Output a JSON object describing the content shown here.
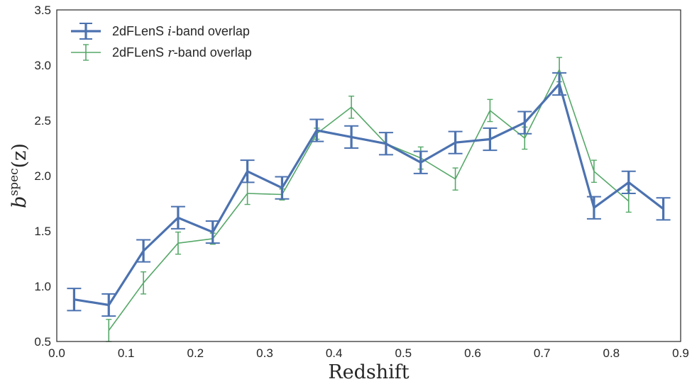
{
  "chart_data": {
    "type": "line",
    "xlabel": "Redshift",
    "ylabel": "b^spec(z)",
    "xlim": [
      0.0,
      0.9
    ],
    "ylim": [
      0.5,
      3.5
    ],
    "x_ticks": [
      "0.0",
      "0.1",
      "0.2",
      "0.3",
      "0.4",
      "0.5",
      "0.6",
      "0.7",
      "0.8",
      "0.9"
    ],
    "y_ticks": [
      "0.5",
      "1.0",
      "1.5",
      "2.0",
      "2.5",
      "3.0",
      "3.5"
    ],
    "grid": false,
    "legend_position": "top-left",
    "series": [
      {
        "name": "2dFLenS i-band overlap",
        "legend_prefix": "2dFLenS ",
        "legend_var": "i",
        "legend_suffix": "-band overlap",
        "color": "#4C72B0",
        "x": [
          0.025,
          0.075,
          0.125,
          0.175,
          0.225,
          0.275,
          0.325,
          0.375,
          0.425,
          0.475,
          0.525,
          0.575,
          0.625,
          0.675,
          0.725,
          0.775,
          0.825,
          0.875
        ],
        "y": [
          0.88,
          0.83,
          1.32,
          1.62,
          1.49,
          2.04,
          1.89,
          2.41,
          2.35,
          2.29,
          2.12,
          2.3,
          2.33,
          2.48,
          2.83,
          1.71,
          1.94,
          1.7
        ],
        "yerr": [
          0.1,
          0.1,
          0.1,
          0.1,
          0.1,
          0.1,
          0.1,
          0.1,
          0.1,
          0.1,
          0.1,
          0.1,
          0.1,
          0.1,
          0.1,
          0.1,
          0.1,
          0.1
        ]
      },
      {
        "name": "2dFLenS r-band overlap",
        "legend_prefix": "2dFLenS ",
        "legend_var": "r",
        "legend_suffix": "-band overlap",
        "color": "#55A868",
        "x": [
          0.075,
          0.125,
          0.175,
          0.225,
          0.275,
          0.325,
          0.375,
          0.425,
          0.475,
          0.525,
          0.575,
          0.625,
          0.675,
          0.725,
          0.775,
          0.825
        ],
        "y": [
          0.6,
          1.03,
          1.39,
          1.43,
          1.84,
          1.83,
          2.38,
          2.62,
          2.29,
          2.16,
          1.97,
          2.59,
          2.34,
          2.96,
          2.04,
          1.77
        ],
        "yerr": [
          0.1,
          0.1,
          0.1,
          0.05,
          0.1,
          0.05,
          0.05,
          0.1,
          0.1,
          0.1,
          0.1,
          0.1,
          0.1,
          0.11,
          0.1,
          0.1
        ]
      }
    ]
  }
}
